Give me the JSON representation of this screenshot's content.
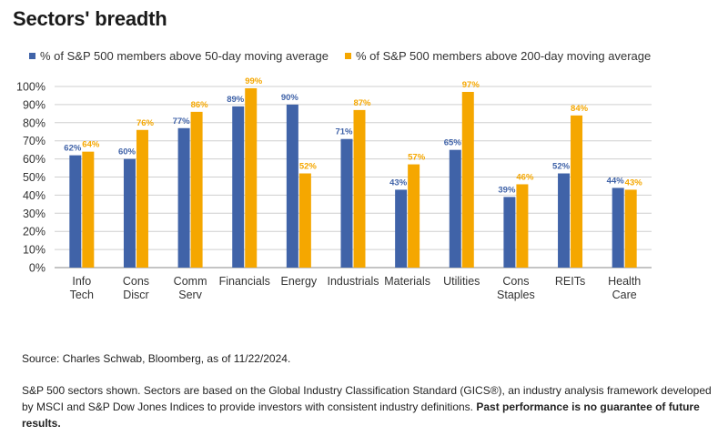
{
  "title": "Sectors' breadth",
  "colors": {
    "series50": "#4063a8",
    "series200": "#f5a700",
    "grid": "#cfcfcf",
    "axis": "#888888"
  },
  "chart_data": {
    "type": "bar",
    "categories": [
      [
        "Info",
        "Tech"
      ],
      [
        "Cons",
        "Discr"
      ],
      [
        "Comm",
        "Serv"
      ],
      [
        "Financials"
      ],
      [
        "Energy"
      ],
      [
        "Industrials"
      ],
      [
        "Materials"
      ],
      [
        "Utilities"
      ],
      [
        "Cons",
        "Staples"
      ],
      [
        "REITs"
      ],
      [
        "Health",
        "Care"
      ]
    ],
    "series": [
      {
        "name": "% of S&P 500 members above 50-day moving average",
        "values": [
          62,
          60,
          77,
          89,
          90,
          71,
          43,
          65,
          39,
          52,
          44
        ]
      },
      {
        "name": "% of S&P 500 members above 200-day moving average",
        "values": [
          64,
          76,
          86,
          99,
          52,
          87,
          57,
          97,
          46,
          84,
          43
        ]
      }
    ],
    "ylim": [
      0,
      100
    ],
    "yticks": [
      0,
      10,
      20,
      30,
      40,
      50,
      60,
      70,
      80,
      90,
      100
    ],
    "value_suffix": "%",
    "grid": true,
    "legend": "top-left"
  },
  "footer": {
    "source": "Source: Charles Schwab, Bloomberg, as of 11/22/2024.",
    "note": "S&P 500 sectors shown. Sectors are based on the Global Industry Classification Standard (GICS®), an industry analysis framework developed by MSCI and S&P Dow Jones Indices to provide investors with consistent industry definitions.",
    "disclaimer": "Past performance is no guarantee of future results."
  }
}
